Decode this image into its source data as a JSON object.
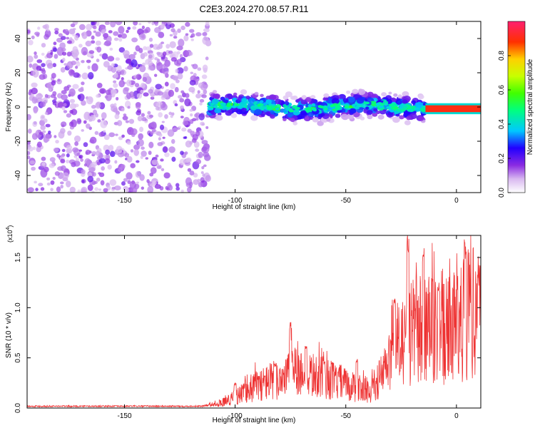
{
  "figure": {
    "title": "C2E3.2024.270.08.57.R11"
  },
  "chart_data": [
    {
      "type": "heatmap",
      "xlabel": "Height of straight line (km)",
      "ylabel": "Frequency (Hz)",
      "xlim": [
        -194,
        11
      ],
      "ylim": [
        -50,
        50
      ],
      "xticks": [
        -150,
        -100,
        -50,
        0
      ],
      "xtick_labels": [
        "-150",
        "-100",
        "-50",
        "0"
      ],
      "yticks": [
        -40,
        -20,
        0,
        20,
        40
      ],
      "ytick_labels": [
        "-40",
        "-20",
        "0",
        "20",
        "40"
      ],
      "grid": false,
      "colorbar": {
        "label": "Normalized spectral amplitude",
        "range": [
          0,
          1
        ],
        "ticks": [
          0,
          0.2,
          0.4,
          0.6,
          0.8
        ],
        "tick_labels": [
          "0.0",
          "0.2",
          "0.4",
          "0.6",
          "0.8"
        ],
        "colormap": "rainbow"
      },
      "regions": [
        {
          "x_range": [
            -194,
            -112
          ],
          "f_range": [
            -50,
            50
          ],
          "amplitude_range": [
            0.0,
            0.1
          ]
        },
        {
          "x_range": [
            -112,
            -14
          ],
          "f_center": 0,
          "f_halfwidth": 7,
          "amplitude_range": [
            0.1,
            0.5
          ]
        },
        {
          "x_range": [
            -14,
            11
          ],
          "f_center": -1,
          "f_halfwidth": 2,
          "amplitude_range": [
            0.85,
            1.0
          ]
        }
      ]
    },
    {
      "type": "line",
      "xlabel": "Height of straight line (km)",
      "ylabel": "SNR (10 * v/v)",
      "y_multiplier": "(x10",
      "y_multiplier_exp": "4",
      "y_multiplier_close": ")",
      "xlim": [
        -194,
        11
      ],
      "ylim": [
        0,
        1.72
      ],
      "xticks": [
        -150,
        -100,
        -50,
        0
      ],
      "xtick_labels": [
        "-150",
        "-100",
        "-50",
        "0"
      ],
      "yticks": [
        0,
        0.5,
        1.0,
        1.5
      ],
      "ytick_labels": [
        "0.0",
        "0.5",
        "1.0",
        "1.5"
      ],
      "grid": false,
      "series": [
        {
          "color": "#ee3333",
          "envelope": [
            {
              "x": -194,
              "y": 0.02
            },
            {
              "x": -115,
              "y": 0.02
            },
            {
              "x": -108,
              "y": 0.04
            },
            {
              "x": -100,
              "y": 0.12
            },
            {
              "x": -90,
              "y": 0.25
            },
            {
              "x": -80,
              "y": 0.33
            },
            {
              "x": -75,
              "y": 0.4
            },
            {
              "x": -65,
              "y": 0.36
            },
            {
              "x": -55,
              "y": 0.3
            },
            {
              "x": -45,
              "y": 0.22
            },
            {
              "x": -38,
              "y": 0.2
            },
            {
              "x": -34,
              "y": 0.35
            },
            {
              "x": -28,
              "y": 0.6
            },
            {
              "x": -22,
              "y": 0.8
            },
            {
              "x": -15,
              "y": 0.9
            },
            {
              "x": -8,
              "y": 0.8
            },
            {
              "x": -3,
              "y": 0.85
            },
            {
              "x": 3,
              "y": 1.0
            },
            {
              "x": 11,
              "y": 1.1
            }
          ],
          "peaks": [
            {
              "x": -100,
              "y": 0.25
            },
            {
              "x": -82,
              "y": 0.45
            },
            {
              "x": -75,
              "y": 0.86
            },
            {
              "x": -68,
              "y": 0.65
            },
            {
              "x": -60,
              "y": 0.48
            },
            {
              "x": -45,
              "y": 0.5
            },
            {
              "x": -28,
              "y": 1.1
            },
            {
              "x": -22,
              "y": 1.72
            },
            {
              "x": -15,
              "y": 1.6
            },
            {
              "x": -8,
              "y": 1.25
            },
            {
              "x": 4,
              "y": 1.65
            },
            {
              "x": 10,
              "y": 1.35
            }
          ]
        }
      ]
    }
  ]
}
